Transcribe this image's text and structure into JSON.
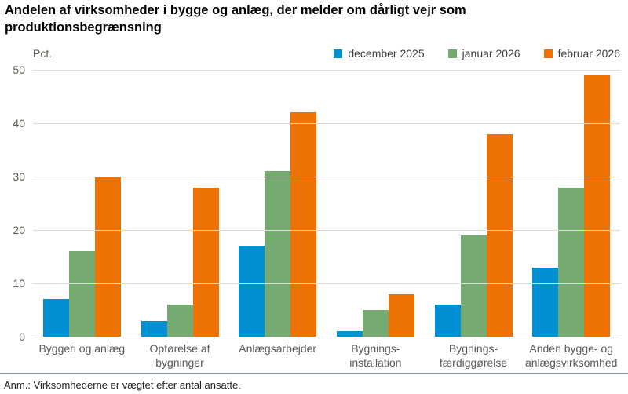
{
  "title": "Andelen af virksomheder i bygge og anlæg, der melder om dårligt vejr som produktionsbegrænsning",
  "unit_label": "Pct.",
  "note": "Anm.: Virksomhederne er vægtet efter antal ansatte.",
  "colors": {
    "december_2025": "#0090d2",
    "januar_2026": "#75ab71",
    "februar_2026": "#ee7203",
    "gridline": "#dcdcdc",
    "baseline": "#c6c6c6",
    "separator": "#8e989e"
  },
  "chart_data": {
    "type": "bar",
    "title": "Andelen af virksomheder i bygge og anlæg, der melder om dårligt vejr som produktionsbegrænsning",
    "xlabel": "",
    "ylabel": "Pct.",
    "ylim": [
      0,
      50
    ],
    "yticks": [
      0,
      10,
      20,
      30,
      40,
      50
    ],
    "grid": true,
    "legend_position": "top-right",
    "categories": [
      "Byggeri og anlæg",
      "Opførelse af bygninger",
      "Anlægsarbejder",
      "Bygnings-installation",
      "Bygnings-færdiggørelse",
      "Anden bygge- og anlægsvirksomhed"
    ],
    "category_lines": [
      [
        "Byggeri og anlæg"
      ],
      [
        "Opførelse af",
        "bygninger"
      ],
      [
        "Anlægsarbejder"
      ],
      [
        "Bygnings-",
        "installation"
      ],
      [
        "Bygnings-",
        "færdiggørelse"
      ],
      [
        "Anden bygge- og",
        "anlægsvirksomhed"
      ]
    ],
    "series": [
      {
        "name": "december 2025",
        "color": "#0090d2",
        "values": [
          7,
          3,
          17,
          1,
          6,
          13
        ]
      },
      {
        "name": "januar 2026",
        "color": "#75ab71",
        "values": [
          16,
          6,
          31,
          5,
          19,
          28
        ]
      },
      {
        "name": "februar 2026",
        "color": "#ee7203",
        "values": [
          30,
          28,
          42,
          8,
          38,
          49
        ]
      }
    ]
  }
}
